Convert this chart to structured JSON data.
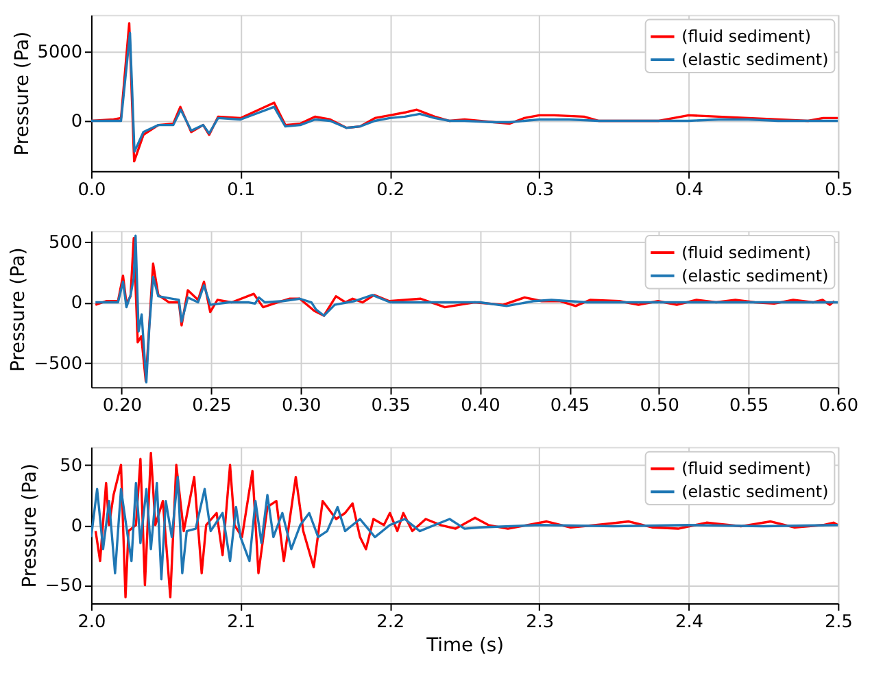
{
  "chart_data": [
    {
      "type": "line",
      "ylabel": "Pressure (Pa)",
      "grid": true,
      "legend": "top right",
      "line_style": "solid",
      "xlim": [
        0,
        0.5
      ],
      "xticks": [
        {
          "value": 0,
          "label": "0.0"
        },
        0.1,
        0.2,
        0.3,
        0.4,
        0.5
      ],
      "ylim": [
        -3600,
        7600
      ],
      "yticks": [
        0,
        {
          "value": 5000,
          "label": "5000"
        }
      ],
      "series": [
        {
          "name": "(fluid sediment)",
          "color": "#ff0000",
          "x": [
            0,
            0.015,
            0.02,
            0.0255,
            0.0288,
            0.035,
            0.045,
            0.055,
            0.0597,
            0.067,
            0.075,
            0.079,
            0.085,
            0.1,
            0.1225,
            0.13,
            0.14,
            0.15,
            0.16,
            0.171,
            0.18,
            0.19,
            0.2,
            0.21,
            0.218,
            0.23,
            0.24,
            0.25,
            0.26,
            0.27,
            0.28,
            0.29,
            0.3,
            0.31,
            0.33,
            0.34,
            0.36,
            0.38,
            0.39,
            0.4,
            0.42,
            0.44,
            0.46,
            0.48,
            0.49,
            0.5
          ],
          "values": [
            0,
            100,
            200,
            7000,
            -2900,
            -1000,
            -300,
            -200,
            1000,
            -800,
            -300,
            -1000,
            300,
            200,
            1300,
            -300,
            -200,
            300,
            100,
            -500,
            -400,
            200,
            400,
            600,
            800,
            300,
            0,
            100,
            0,
            -100,
            -200,
            200,
            400,
            400,
            300,
            0,
            0,
            0,
            200,
            400,
            300,
            200,
            100,
            0,
            200,
            200
          ]
        },
        {
          "name": "(elastic sediment)",
          "color": "#1f77b4",
          "x": [
            0,
            0.015,
            0.02,
            0.026,
            0.029,
            0.035,
            0.045,
            0.055,
            0.06,
            0.067,
            0.075,
            0.079,
            0.085,
            0.1,
            0.1225,
            0.13,
            0.14,
            0.15,
            0.16,
            0.171,
            0.18,
            0.19,
            0.2,
            0.21,
            0.22,
            0.23,
            0.24,
            0.25,
            0.27,
            0.28,
            0.3,
            0.32,
            0.34,
            0.36,
            0.38,
            0.4,
            0.42,
            0.44,
            0.46,
            0.48,
            0.5
          ],
          "values": [
            0,
            0,
            0,
            6300,
            -2200,
            -800,
            -300,
            -300,
            800,
            -700,
            -300,
            -900,
            200,
            100,
            1000,
            -400,
            -300,
            100,
            0,
            -500,
            -400,
            0,
            200,
            300,
            500,
            200,
            0,
            0,
            -100,
            -100,
            100,
            100,
            0,
            0,
            0,
            0,
            100,
            100,
            0,
            0,
            0
          ]
        }
      ]
    },
    {
      "type": "line",
      "ylabel": "Pressure (Pa)",
      "grid": true,
      "legend": "top right",
      "line_style": "solid",
      "xlim": [
        0.183,
        0.6
      ],
      "xticks": [
        {
          "value": 0.2,
          "label": "0.20"
        },
        0.25,
        {
          "value": 0.3,
          "label": "0.30"
        },
        0.35,
        {
          "value": 0.4,
          "label": "0.40"
        },
        0.45,
        {
          "value": 0.5,
          "label": "0.50"
        },
        0.55,
        {
          "value": 0.6,
          "label": "0.60"
        }
      ],
      "ylim": [
        -700,
        590
      ],
      "yticks": [
        -500,
        0,
        500
      ],
      "series": [
        {
          "name": "(fluid sediment)",
          "color": "#ff0000",
          "x": [
            0.1854,
            0.1914,
            0.198,
            0.2008,
            0.2027,
            0.205,
            0.2068,
            0.209,
            0.211,
            0.2135,
            0.215,
            0.2176,
            0.2205,
            0.2265,
            0.232,
            0.2335,
            0.237,
            0.2427,
            0.246,
            0.2495,
            0.2535,
            0.2616,
            0.2738,
            0.279,
            0.287,
            0.294,
            0.2995,
            0.3076,
            0.313,
            0.3197,
            0.325,
            0.329,
            0.3346,
            0.341,
            0.3495,
            0.367,
            0.3805,
            0.397,
            0.413,
            0.425,
            0.4346,
            0.445,
            0.4535,
            0.4616,
            0.478,
            0.4886,
            0.4995,
            0.51,
            0.521,
            0.532,
            0.5427,
            0.5535,
            0.5643,
            0.575,
            0.586,
            0.5914,
            0.5954,
            0.598
          ],
          "values": [
            -20,
            10,
            10,
            220,
            -10,
            50,
            530,
            -330,
            -280,
            -650,
            -300,
            320,
            60,
            0,
            0,
            -190,
            100,
            20,
            170,
            -80,
            20,
            0,
            70,
            -40,
            0,
            30,
            30,
            -70,
            -110,
            50,
            0,
            30,
            0,
            60,
            10,
            30,
            -40,
            0,
            -20,
            40,
            10,
            10,
            -30,
            20,
            10,
            -20,
            10,
            -20,
            20,
            0,
            20,
            0,
            -10,
            20,
            0,
            20,
            -20,
            10
          ]
        },
        {
          "name": "(elastic sediment)",
          "color": "#1f77b4",
          "x": [
            0.1854,
            0.198,
            0.2008,
            0.2027,
            0.205,
            0.2068,
            0.2078,
            0.2095,
            0.2112,
            0.2138,
            0.2155,
            0.2176,
            0.2205,
            0.232,
            0.2335,
            0.237,
            0.2427,
            0.246,
            0.2495,
            0.26,
            0.271,
            0.2745,
            0.2767,
            0.28,
            0.29,
            0.2995,
            0.306,
            0.3086,
            0.313,
            0.319,
            0.33,
            0.34,
            0.35,
            0.38,
            0.4,
            0.415,
            0.43,
            0.44,
            0.46,
            0.5,
            0.6
          ],
          "values": [
            0,
            0,
            170,
            -40,
            60,
            200,
            550,
            -240,
            -100,
            -660,
            -200,
            210,
            50,
            20,
            -160,
            40,
            0,
            140,
            -20,
            0,
            0,
            -10,
            40,
            0,
            10,
            30,
            0,
            -60,
            -110,
            -20,
            10,
            60,
            0,
            0,
            0,
            -30,
            10,
            20,
            0,
            0,
            0
          ]
        }
      ]
    },
    {
      "type": "line",
      "xlabel": "Time (s)",
      "ylabel": "Pressure (Pa)",
      "grid": true,
      "legend": "top right",
      "line_style": "solid",
      "xlim": [
        2.0,
        2.5
      ],
      "xticks": [
        {
          "value": 2.0,
          "label": "2.0"
        },
        2.1,
        2.2,
        2.3,
        2.4,
        2.5
      ],
      "ylim": [
        -65,
        65
      ],
      "yticks": [
        -50,
        0,
        50
      ],
      "series": [
        {
          "name": "(fluid sediment)",
          "color": "#ff0000",
          "x": [
            2.003,
            2.006,
            2.01,
            2.012,
            2.015,
            2.02,
            2.023,
            2.025,
            2.03,
            2.033,
            2.036,
            2.04,
            2.043,
            2.048,
            2.053,
            2.057,
            2.062,
            2.069,
            2.074,
            2.077,
            2.084,
            2.088,
            2.093,
            2.096,
            2.101,
            2.108,
            2.112,
            2.118,
            2.124,
            2.129,
            2.137,
            2.142,
            2.149,
            2.155,
            2.164,
            2.17,
            2.175,
            2.18,
            2.184,
            2.189,
            2.196,
            2.2,
            2.205,
            2.209,
            2.215,
            2.224,
            2.234,
            2.244,
            2.257,
            2.266,
            2.279,
            2.305,
            2.321,
            2.338,
            2.36,
            2.376,
            2.393,
            2.412,
            2.435,
            2.455,
            2.471,
            2.49,
            2.497,
            2.5
          ],
          "values": [
            -5,
            -30,
            35,
            0,
            25,
            50,
            -60,
            -5,
            0,
            55,
            -50,
            60,
            0,
            20,
            -60,
            50,
            -5,
            40,
            -40,
            0,
            10,
            -25,
            50,
            0,
            -10,
            45,
            -40,
            15,
            20,
            -30,
            40,
            -5,
            -35,
            20,
            5,
            10,
            18,
            -10,
            -20,
            5,
            0,
            10,
            -5,
            10,
            -5,
            5,
            0,
            -3,
            6,
            0,
            -3,
            3,
            -2,
            0,
            3,
            -2,
            -3,
            2,
            -1,
            3,
            -2,
            0,
            2,
            0
          ]
        },
        {
          "name": "(elastic sediment)",
          "color": "#1f77b4",
          "x": [
            2.0,
            2.004,
            2.008,
            2.012,
            2.016,
            2.02,
            2.024,
            2.027,
            2.03,
            2.033,
            2.037,
            2.04,
            2.044,
            2.047,
            2.05,
            2.054,
            2.058,
            2.061,
            2.064,
            2.07,
            2.076,
            2.08,
            2.088,
            2.093,
            2.097,
            2.1,
            2.106,
            2.11,
            2.114,
            2.118,
            2.122,
            2.128,
            2.134,
            2.14,
            2.146,
            2.152,
            2.158,
            2.165,
            2.17,
            2.18,
            2.19,
            2.2,
            2.21,
            2.22,
            2.23,
            2.24,
            2.25,
            2.26,
            2.3,
            2.35,
            2.4,
            2.45,
            2.5
          ],
          "values": [
            -10,
            30,
            -20,
            20,
            -40,
            30,
            -5,
            -30,
            35,
            -15,
            30,
            -20,
            35,
            -45,
            20,
            -10,
            40,
            -40,
            -5,
            -3,
            30,
            -5,
            10,
            -30,
            15,
            -10,
            -30,
            20,
            -15,
            25,
            -10,
            10,
            -20,
            0,
            10,
            -10,
            -5,
            15,
            -5,
            5,
            -10,
            0,
            5,
            -5,
            0,
            5,
            -3,
            -2,
            0,
            -1,
            0,
            -1,
            0
          ]
        }
      ]
    }
  ]
}
